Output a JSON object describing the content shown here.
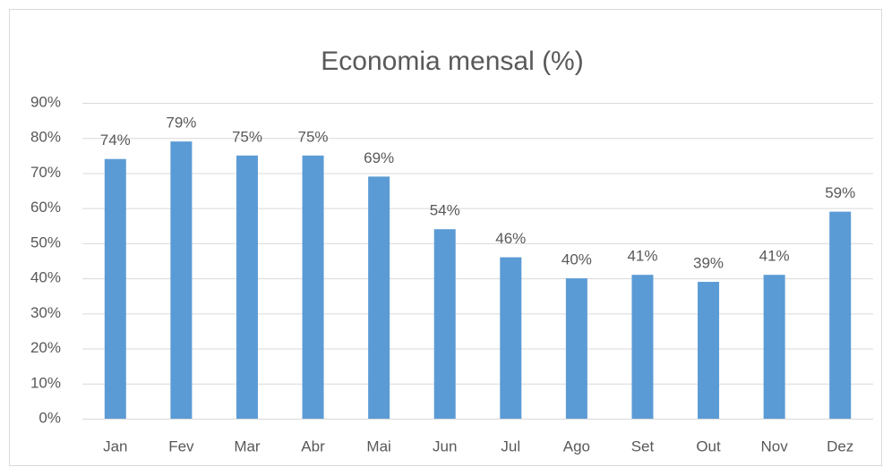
{
  "chart_data": {
    "type": "bar",
    "title": "Economia mensal (%)",
    "categories": [
      "Jan",
      "Fev",
      "Mar",
      "Abr",
      "Mai",
      "Jun",
      "Jul",
      "Ago",
      "Set",
      "Out",
      "Nov",
      "Dez"
    ],
    "values": [
      74,
      79,
      75,
      75,
      69,
      54,
      46,
      40,
      41,
      39,
      41,
      59
    ],
    "value_labels": [
      "74%",
      "79%",
      "75%",
      "75%",
      "69%",
      "54%",
      "46%",
      "40%",
      "41%",
      "39%",
      "41%",
      "59%"
    ],
    "color": "#5b9bd5",
    "ylim": [
      0,
      90
    ],
    "yticks": [
      {
        "value": 0,
        "label": "0%"
      },
      {
        "value": 10,
        "label": "10%"
      },
      {
        "value": 20,
        "label": "20%"
      },
      {
        "value": 30,
        "label": "30%"
      },
      {
        "value": 40,
        "label": "40%"
      },
      {
        "value": 50,
        "label": "50%"
      },
      {
        "value": 60,
        "label": "60%"
      },
      {
        "value": 70,
        "label": "70%"
      },
      {
        "value": 80,
        "label": "80%"
      },
      {
        "value": 90,
        "label": "90%"
      }
    ],
    "grid": true
  }
}
